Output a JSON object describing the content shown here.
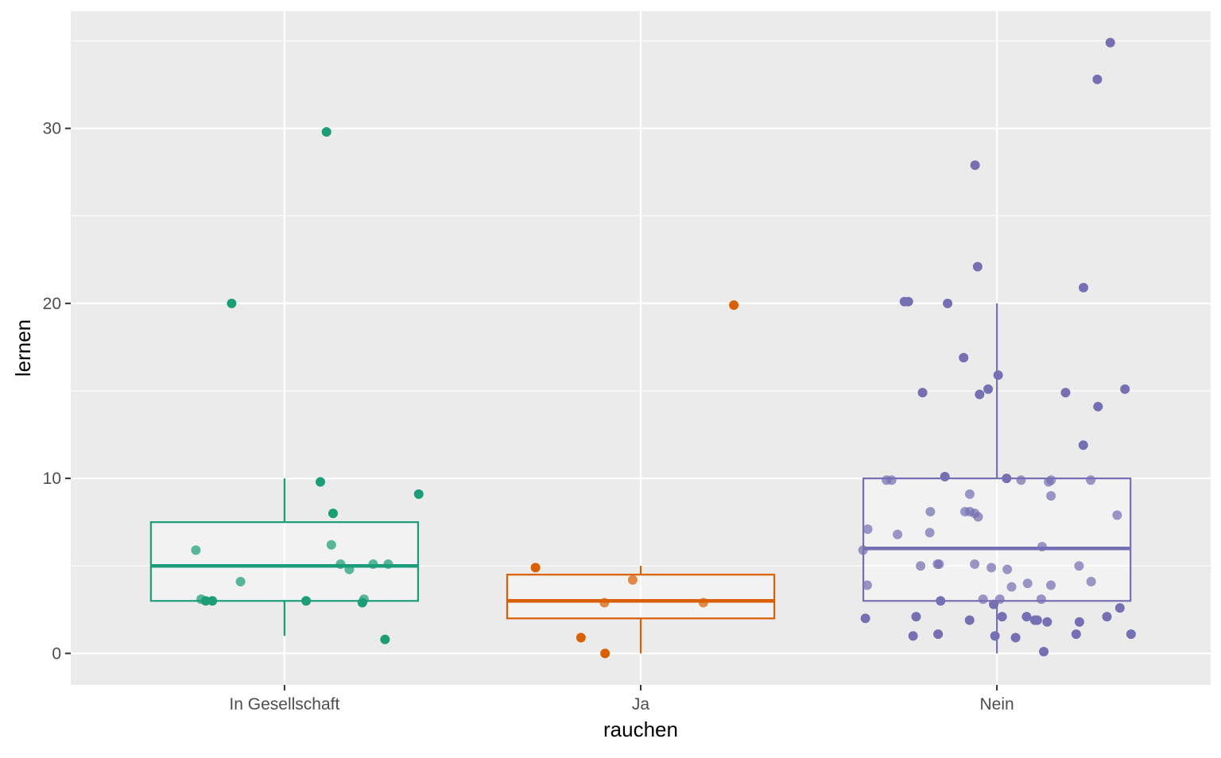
{
  "chart_data": {
    "type": "boxplot",
    "xlabel": "rauchen",
    "ylabel": "lernen",
    "ylim": [
      -1.8,
      36.7
    ],
    "yticks": [
      0,
      10,
      20,
      30
    ],
    "grid": true,
    "legend": "none",
    "colors": {
      "panel_background": "#ebebeb",
      "grid_line": "#ffffff",
      "In Gesellschaft": "#1b9e77",
      "Ja": "#d95f02",
      "Nein": "#7570b3"
    },
    "categories": [
      "In Gesellschaft",
      "Ja",
      "Nein"
    ],
    "boxes": [
      {
        "category": "In Gesellschaft",
        "lower_whisker": 1,
        "q1": 3,
        "median": 5,
        "q3": 7.5,
        "upper_whisker": 10
      },
      {
        "category": "Ja",
        "lower_whisker": 0,
        "q1": 2,
        "median": 3,
        "q3": 4.5,
        "upper_whisker": 5
      },
      {
        "category": "Nein",
        "lower_whisker": 0,
        "q1": 3,
        "median": 6,
        "q3": 10,
        "upper_whisker": 20
      }
    ],
    "points": [
      {
        "category": "In Gesellschaft",
        "values": [
          29.8,
          20,
          9.8,
          9.1,
          8,
          6.2,
          5.9,
          5.1,
          5.1,
          5.1,
          4.8,
          4.1,
          3.1,
          3.1,
          3.0,
          3.0,
          3.0,
          2.9,
          0.8
        ]
      },
      {
        "category": "Ja",
        "values": [
          19.9,
          4.9,
          4.2,
          2.9,
          2.9,
          0.9,
          0
        ]
      },
      {
        "category": "Nein",
        "values": [
          34.9,
          32.8,
          27.9,
          22.1,
          20.9,
          20.1,
          20.1,
          20,
          16.9,
          15.9,
          15.1,
          15.1,
          14.9,
          14.9,
          14.8,
          14.1,
          11.9,
          10.1,
          10.0,
          9.9,
          9.9,
          9.9,
          9.9,
          9.9,
          9.8,
          9.1,
          9.0,
          8.1,
          8.1,
          8.1,
          8.0,
          7.9,
          7.8,
          7.1,
          6.9,
          6.8,
          6.1,
          5.9,
          5.1,
          5.1,
          5.1,
          5.0,
          5.0,
          4.9,
          4.8,
          4.1,
          4.0,
          3.9,
          3.9,
          3.8,
          3.1,
          3.1,
          3.1,
          3.0,
          2.8,
          2.6,
          2.1,
          2.1,
          2.1,
          2.1,
          2.0,
          1.9,
          1.9,
          1.9,
          1.8,
          1.8,
          1.1,
          1.1,
          1.1,
          1.0,
          1.0,
          0.9,
          0.1
        ]
      }
    ]
  }
}
